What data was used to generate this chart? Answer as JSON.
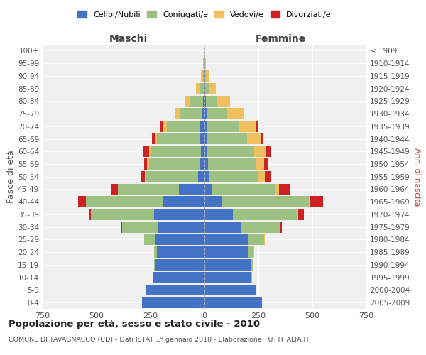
{
  "age_groups": [
    "0-4",
    "5-9",
    "10-14",
    "15-19",
    "20-24",
    "25-29",
    "30-34",
    "35-39",
    "40-44",
    "45-49",
    "50-54",
    "55-59",
    "60-64",
    "65-69",
    "70-74",
    "75-79",
    "80-84",
    "85-89",
    "90-94",
    "95-99",
    "100+"
  ],
  "birth_years": [
    "2005-2009",
    "2000-2004",
    "1995-1999",
    "1990-1994",
    "1985-1989",
    "1980-1984",
    "1975-1979",
    "1970-1974",
    "1965-1969",
    "1960-1964",
    "1955-1959",
    "1950-1954",
    "1945-1949",
    "1940-1944",
    "1935-1939",
    "1930-1934",
    "1925-1929",
    "1920-1924",
    "1915-1919",
    "1910-1914",
    "≤ 1909"
  ],
  "colors": {
    "celibe": "#4472C4",
    "coniugato": "#9DC183",
    "vedovo": "#F0C060",
    "divorziato": "#CC2222"
  },
  "maschi": {
    "celibe": [
      290,
      270,
      240,
      230,
      220,
      230,
      215,
      235,
      195,
      120,
      30,
      22,
      18,
      20,
      20,
      14,
      8,
      4,
      2,
      1,
      0
    ],
    "coniugato": [
      0,
      0,
      0,
      5,
      15,
      50,
      165,
      290,
      355,
      280,
      240,
      235,
      230,
      200,
      155,
      100,
      60,
      20,
      5,
      2,
      0
    ],
    "vedovo": [
      0,
      0,
      0,
      0,
      0,
      0,
      0,
      0,
      0,
      0,
      5,
      8,
      10,
      10,
      20,
      20,
      25,
      15,
      10,
      5,
      0
    ],
    "divorziato": [
      0,
      0,
      0,
      0,
      0,
      0,
      5,
      10,
      35,
      35,
      20,
      15,
      25,
      15,
      10,
      5,
      0,
      0,
      0,
      0,
      0
    ]
  },
  "femmine": {
    "nubile": [
      265,
      240,
      215,
      215,
      205,
      200,
      170,
      130,
      80,
      35,
      20,
      16,
      14,
      14,
      12,
      10,
      5,
      3,
      2,
      1,
      0
    ],
    "coniugata": [
      0,
      0,
      5,
      10,
      20,
      75,
      180,
      300,
      405,
      295,
      230,
      220,
      215,
      185,
      145,
      95,
      55,
      20,
      5,
      2,
      0
    ],
    "vedova": [
      0,
      0,
      0,
      0,
      5,
      5,
      0,
      5,
      5,
      15,
      30,
      40,
      55,
      60,
      80,
      75,
      60,
      30,
      15,
      5,
      1
    ],
    "divorziata": [
      0,
      0,
      0,
      0,
      0,
      0,
      10,
      25,
      60,
      50,
      30,
      20,
      25,
      15,
      10,
      5,
      0,
      0,
      0,
      0,
      0
    ]
  },
  "xlim": 750,
  "title": "Popolazione per età, sesso e stato civile - 2010",
  "subtitle": "COMUNE DI TAVAGNACCO (UD) - Dati ISTAT 1° gennaio 2010 - Elaborazione TUTTITALIA.IT",
  "xlabel_left": "Maschi",
  "xlabel_right": "Femmine",
  "ylabel_left": "Fasce di età",
  "ylabel_right": "Anni di nascita",
  "background_color": "#f0f0f0"
}
